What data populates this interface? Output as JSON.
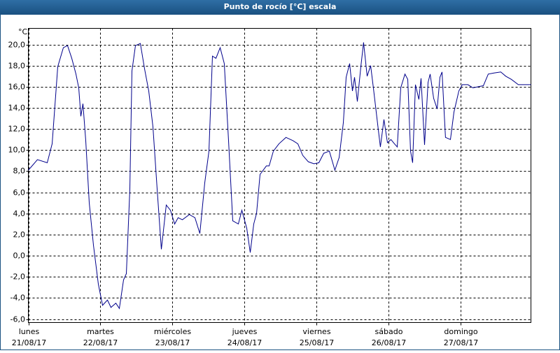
{
  "window_title": "Punto de rocío [°C] escala",
  "chart_data": {
    "type": "line",
    "y_unit": "°C",
    "x": [
      0,
      0.126,
      0.262,
      0.33,
      0.408,
      0.485,
      0.544,
      0.602,
      0.66,
      0.699,
      0.728,
      0.757,
      0.796,
      0.845,
      0.903,
      0.971,
      1.029,
      1.097,
      1.146,
      1.214,
      1.262,
      1.32,
      1.359,
      1.408,
      1.437,
      1.485,
      1.553,
      1.612,
      1.67,
      1.728,
      1.786,
      1.845,
      1.913,
      1.971,
      2.029,
      2.078,
      2.136,
      2.233,
      2.311,
      2.379,
      2.447,
      2.505,
      2.553,
      2.602,
      2.66,
      2.718,
      2.777,
      2.835,
      2.913,
      2.961,
      3.029,
      3.078,
      3.126,
      3.165,
      3.214,
      3.301,
      3.34,
      3.398,
      3.476,
      3.573,
      3.67,
      3.738,
      3.806,
      3.883,
      3.961,
      4.029,
      4.097,
      4.175,
      4.252,
      4.311,
      4.369,
      4.408,
      4.456,
      4.495,
      4.524,
      4.563,
      4.612,
      4.65,
      4.699,
      4.748,
      4.786,
      4.854,
      4.883,
      4.932,
      4.981,
      5.029,
      5.078,
      5.117,
      5.165,
      5.223,
      5.262,
      5.301,
      5.33,
      5.369,
      5.417,
      5.447,
      5.495,
      5.544,
      5.573,
      5.621,
      5.67,
      5.709,
      5.738,
      5.786,
      5.854,
      5.903,
      5.971,
      6.019,
      6.097,
      6.165,
      6.311,
      6.379,
      6.456,
      6.553,
      6.621,
      6.699,
      6.796,
      6.971
    ],
    "series": [
      {
        "color": "#00008b",
        "values": [
          8.1,
          9.1,
          8.8,
          10.6,
          17.9,
          19.7,
          19.9,
          18.7,
          17.2,
          15.9,
          13.2,
          14.4,
          10.9,
          5.0,
          1.0,
          -2.7,
          -4.7,
          -4.2,
          -4.9,
          -4.5,
          -5.0,
          -2.3,
          -1.7,
          6.3,
          17.5,
          19.9,
          20.1,
          17.7,
          15.6,
          12.2,
          6.3,
          0.6,
          4.8,
          4.3,
          3.0,
          3.6,
          3.4,
          3.9,
          3.6,
          2.1,
          6.9,
          9.9,
          18.9,
          18.7,
          19.7,
          18.2,
          10.9,
          3.3,
          3.0,
          4.3,
          2.6,
          0.3,
          3.0,
          4.0,
          7.7,
          8.5,
          8.5,
          9.9,
          10.6,
          11.2,
          10.9,
          10.6,
          9.5,
          8.9,
          8.7,
          8.8,
          9.7,
          9.9,
          8.1,
          9.3,
          12.6,
          16.9,
          18.2,
          15.6,
          16.9,
          14.6,
          17.9,
          20.2,
          17.0,
          18.0,
          15.9,
          11.9,
          10.3,
          12.9,
          10.7,
          11.0,
          10.6,
          10.3,
          15.9,
          17.2,
          16.7,
          9.9,
          8.8,
          16.2,
          14.8,
          16.8,
          10.5,
          16.4,
          17.2,
          14.9,
          13.9,
          16.9,
          17.4,
          11.2,
          11.0,
          13.6,
          15.6,
          16.2,
          16.2,
          15.9,
          16.1,
          17.2,
          17.3,
          17.4,
          17.0,
          16.7,
          16.2,
          16.2
        ]
      }
    ],
    "xlim": [
      0,
      6.971
    ],
    "xticks": [
      {
        "value": 0,
        "label": "lunes"
      },
      {
        "value": 1,
        "label": "martes"
      },
      {
        "value": 2,
        "label": "miércoles"
      },
      {
        "value": 3,
        "label": "jueves"
      },
      {
        "value": 4,
        "label": "viernes"
      },
      {
        "value": 5,
        "label": "sábado"
      },
      {
        "value": 6,
        "label": "domingo"
      }
    ],
    "xtick_dates": [
      "21/08/17",
      "22/08/17",
      "23/08/17",
      "24/08/17",
      "25/08/17",
      "26/08/17",
      "27/08/17"
    ],
    "ylim": [
      -6.33,
      21.53
    ],
    "yticks": [
      {
        "value": -6,
        "label": "-6,0"
      },
      {
        "value": -4,
        "label": "-4,0"
      },
      {
        "value": -2,
        "label": "-2,0"
      },
      {
        "value": 0,
        "label": "0,0"
      },
      {
        "value": 2,
        "label": "2,0"
      },
      {
        "value": 4,
        "label": "4,0"
      },
      {
        "value": 6,
        "label": "6,0"
      },
      {
        "value": 8,
        "label": "8,0"
      },
      {
        "value": 10,
        "label": "10,0"
      },
      {
        "value": 12,
        "label": "12,0"
      },
      {
        "value": 14,
        "label": "14,0"
      },
      {
        "value": 16,
        "label": "16,0"
      },
      {
        "value": 18,
        "label": "18,0"
      },
      {
        "value": 20,
        "label": "20,0"
      }
    ],
    "grid": true
  }
}
